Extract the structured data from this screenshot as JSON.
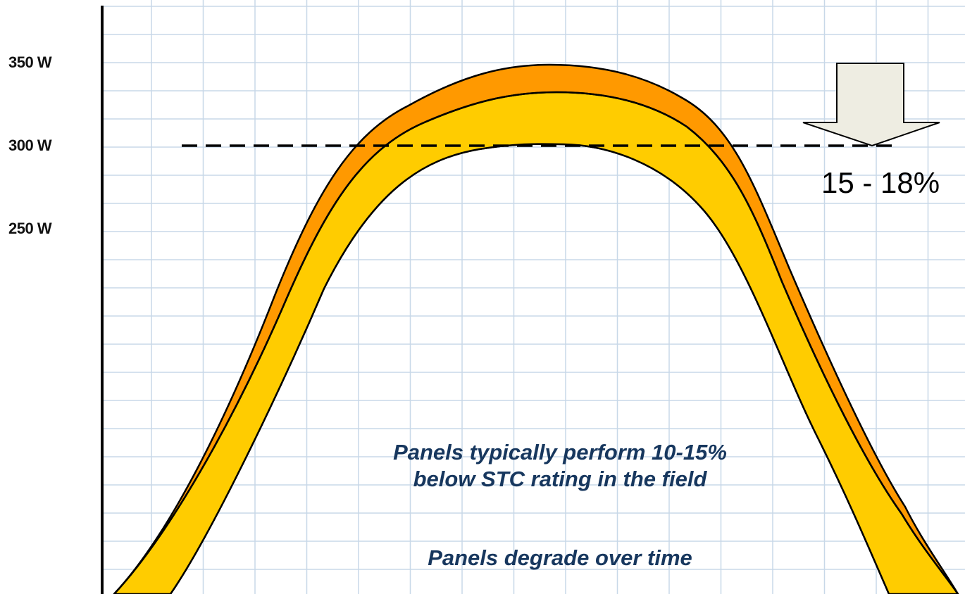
{
  "colors": {
    "background": "#ffffff",
    "grid": "#c8d8e8",
    "axis": "#000000",
    "field_band": "#ffcc00",
    "degradation_band": "#ff9900",
    "arrow_fill": "#eeede2",
    "caption_text": "#17375e"
  },
  "y_axis": {
    "ticks": [
      {
        "value": 350,
        "label": "350 W"
      },
      {
        "value": 300,
        "label": "300 W"
      },
      {
        "value": 250,
        "label": "250 W"
      }
    ]
  },
  "reference_line": {
    "value": 300,
    "style": "dashed"
  },
  "curves": {
    "upper_peak_w": 350,
    "middle_peak_w": 332,
    "lower_peak_w": 300
  },
  "arrow": {
    "direction": "down",
    "icon": "down-arrow-icon"
  },
  "loss_label": "15 - 18%",
  "caption": {
    "line1": "Panels typically perform 10-15%\n below STC rating in the field",
    "line2": "Panels degrade over time"
  }
}
